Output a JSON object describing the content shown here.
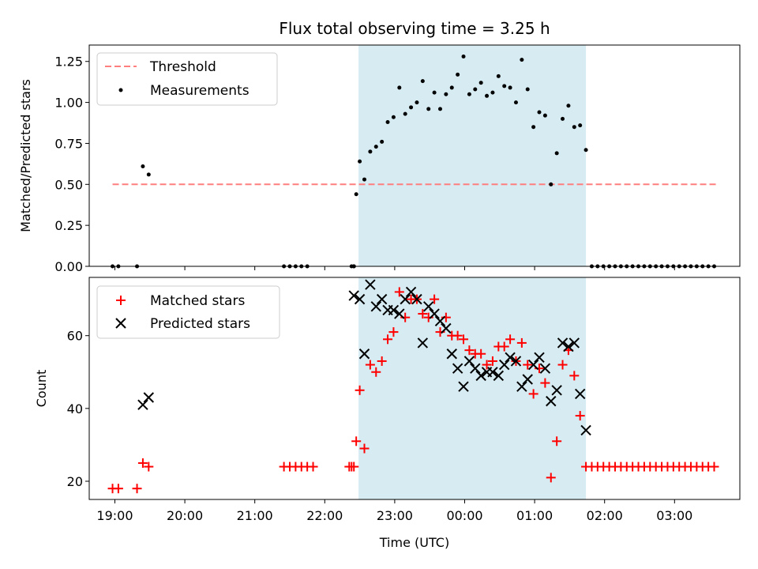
{
  "chart_data": {
    "type": "scatter",
    "title": "Flux total observing time = 3.25 h",
    "xlabel": "Time (UTC)",
    "x_ticks": [
      "19:00",
      "20:00",
      "21:00",
      "22:00",
      "23:00",
      "00:00",
      "01:00",
      "02:00",
      "03:00"
    ],
    "x_range": [
      "18:38",
      "03:56"
    ],
    "shaded_interval": [
      "22:29",
      "01:44"
    ],
    "colors": {
      "shade": "#add8e6",
      "threshold": "#ff7f7f",
      "matched": "#ff0000",
      "predicted": "#000000",
      "measurement": "#000000"
    },
    "top": {
      "ylabel": "Matched/Predicted stars",
      "ylim": [
        0,
        1.35
      ],
      "y_ticks": [
        "0.00",
        "0.25",
        "0.50",
        "0.75",
        "1.00",
        "1.25"
      ],
      "threshold": {
        "name": "Threshold",
        "y": 0.5,
        "x_start": "18:58",
        "x_end": "03:36"
      },
      "series": [
        {
          "name": "Measurements",
          "points": [
            [
              "18:58",
              0.0
            ],
            [
              "19:03",
              0.0
            ],
            [
              "19:19",
              0.0
            ],
            [
              "19:24",
              0.61
            ],
            [
              "19:29",
              0.56
            ],
            [
              "21:25",
              0.0
            ],
            [
              "21:30",
              0.0
            ],
            [
              "21:35",
              0.0
            ],
            [
              "21:40",
              0.0
            ],
            [
              "21:45",
              0.0
            ],
            [
              "22:23",
              0.0
            ],
            [
              "22:25",
              0.0
            ],
            [
              "22:25",
              0.0
            ],
            [
              "22:27",
              0.44
            ],
            [
              "22:30",
              0.64
            ],
            [
              "22:34",
              0.53
            ],
            [
              "22:39",
              0.7
            ],
            [
              "22:44",
              0.73
            ],
            [
              "22:49",
              0.76
            ],
            [
              "22:54",
              0.88
            ],
            [
              "22:59",
              0.91
            ],
            [
              "23:04",
              1.09
            ],
            [
              "23:09",
              0.93
            ],
            [
              "23:14",
              0.97
            ],
            [
              "23:19",
              1.0
            ],
            [
              "23:24",
              1.13
            ],
            [
              "23:29",
              0.96
            ],
            [
              "23:34",
              1.06
            ],
            [
              "23:39",
              0.96
            ],
            [
              "23:44",
              1.05
            ],
            [
              "23:49",
              1.09
            ],
            [
              "23:54",
              1.17
            ],
            [
              "23:59",
              1.28
            ],
            [
              "00:04",
              1.05
            ],
            [
              "00:09",
              1.08
            ],
            [
              "00:14",
              1.12
            ],
            [
              "00:19",
              1.04
            ],
            [
              "00:24",
              1.06
            ],
            [
              "00:29",
              1.16
            ],
            [
              "00:34",
              1.1
            ],
            [
              "00:39",
              1.09
            ],
            [
              "00:44",
              1.0
            ],
            [
              "00:49",
              1.26
            ],
            [
              "00:54",
              1.08
            ],
            [
              "00:59",
              0.85
            ],
            [
              "01:04",
              0.94
            ],
            [
              "01:09",
              0.92
            ],
            [
              "01:14",
              0.5
            ],
            [
              "01:19",
              0.69
            ],
            [
              "01:24",
              0.9
            ],
            [
              "01:29",
              0.98
            ],
            [
              "01:34",
              0.85
            ],
            [
              "01:39",
              0.86
            ],
            [
              "01:44",
              0.71
            ],
            [
              "01:49",
              0.0
            ],
            [
              "01:54",
              0.0
            ],
            [
              "01:59",
              0.0
            ],
            [
              "02:04",
              0.0
            ],
            [
              "02:09",
              0.0
            ],
            [
              "02:14",
              0.0
            ],
            [
              "02:19",
              0.0
            ],
            [
              "02:24",
              0.0
            ],
            [
              "02:29",
              0.0
            ],
            [
              "02:34",
              0.0
            ],
            [
              "02:39",
              0.0
            ],
            [
              "02:44",
              0.0
            ],
            [
              "02:49",
              0.0
            ],
            [
              "02:54",
              0.0
            ],
            [
              "02:59",
              0.0
            ],
            [
              "03:04",
              0.0
            ],
            [
              "03:09",
              0.0
            ],
            [
              "03:14",
              0.0
            ],
            [
              "03:19",
              0.0
            ],
            [
              "03:24",
              0.0
            ],
            [
              "03:29",
              0.0
            ],
            [
              "03:34",
              0.0
            ]
          ]
        }
      ],
      "legend_position": "upper-left"
    },
    "bottom": {
      "ylabel": "Count",
      "ylim": [
        15,
        76
      ],
      "y_ticks": [
        "20",
        "40",
        "60"
      ],
      "series": [
        {
          "name": "Matched stars",
          "marker": "plus",
          "points": [
            [
              "18:58",
              18
            ],
            [
              "19:03",
              18
            ],
            [
              "19:19",
              18
            ],
            [
              "19:24",
              25
            ],
            [
              "19:29",
              24
            ],
            [
              "21:25",
              24
            ],
            [
              "21:30",
              24
            ],
            [
              "21:35",
              24
            ],
            [
              "21:40",
              24
            ],
            [
              "21:45",
              24
            ],
            [
              "21:50",
              24
            ],
            [
              "22:21",
              24
            ],
            [
              "22:23",
              24
            ],
            [
              "22:25",
              24
            ],
            [
              "22:27",
              31
            ],
            [
              "22:30",
              45
            ],
            [
              "22:34",
              29
            ],
            [
              "22:39",
              52
            ],
            [
              "22:44",
              50
            ],
            [
              "22:49",
              53
            ],
            [
              "22:54",
              59
            ],
            [
              "22:59",
              61
            ],
            [
              "23:04",
              72
            ],
            [
              "23:09",
              65
            ],
            [
              "23:14",
              70
            ],
            [
              "23:19",
              70
            ],
            [
              "23:24",
              66
            ],
            [
              "23:29",
              65
            ],
            [
              "23:34",
              70
            ],
            [
              "23:39",
              61
            ],
            [
              "23:44",
              65
            ],
            [
              "23:49",
              60
            ],
            [
              "23:54",
              60
            ],
            [
              "23:59",
              59
            ],
            [
              "00:04",
              56
            ],
            [
              "00:09",
              55
            ],
            [
              "00:14",
              55
            ],
            [
              "00:19",
              52
            ],
            [
              "00:24",
              53
            ],
            [
              "00:29",
              57
            ],
            [
              "00:34",
              57
            ],
            [
              "00:39",
              59
            ],
            [
              "00:44",
              53
            ],
            [
              "00:49",
              58
            ],
            [
              "00:54",
              52
            ],
            [
              "00:59",
              44
            ],
            [
              "01:04",
              51
            ],
            [
              "01:09",
              47
            ],
            [
              "01:14",
              21
            ],
            [
              "01:19",
              31
            ],
            [
              "01:24",
              52
            ],
            [
              "01:29",
              56
            ],
            [
              "01:34",
              49
            ],
            [
              "01:39",
              38
            ],
            [
              "01:44",
              24
            ],
            [
              "01:49",
              24
            ],
            [
              "01:54",
              24
            ],
            [
              "01:59",
              24
            ],
            [
              "02:04",
              24
            ],
            [
              "02:09",
              24
            ],
            [
              "02:14",
              24
            ],
            [
              "02:19",
              24
            ],
            [
              "02:24",
              24
            ],
            [
              "02:29",
              24
            ],
            [
              "02:34",
              24
            ],
            [
              "02:39",
              24
            ],
            [
              "02:44",
              24
            ],
            [
              "02:49",
              24
            ],
            [
              "02:54",
              24
            ],
            [
              "02:59",
              24
            ],
            [
              "03:04",
              24
            ],
            [
              "03:09",
              24
            ],
            [
              "03:14",
              24
            ],
            [
              "03:19",
              24
            ],
            [
              "03:24",
              24
            ],
            [
              "03:29",
              24
            ],
            [
              "03:34",
              24
            ]
          ]
        },
        {
          "name": "Predicted stars",
          "marker": "x",
          "points": [
            [
              "19:24",
              41
            ],
            [
              "19:29",
              43
            ],
            [
              "22:25",
              71
            ],
            [
              "22:30",
              70
            ],
            [
              "22:34",
              55
            ],
            [
              "22:39",
              74
            ],
            [
              "22:44",
              68
            ],
            [
              "22:49",
              70
            ],
            [
              "22:54",
              67
            ],
            [
              "22:59",
              67
            ],
            [
              "23:04",
              66
            ],
            [
              "23:09",
              70
            ],
            [
              "23:14",
              72
            ],
            [
              "23:19",
              70
            ],
            [
              "23:24",
              58
            ],
            [
              "23:29",
              68
            ],
            [
              "23:34",
              66
            ],
            [
              "23:39",
              64
            ],
            [
              "23:44",
              62
            ],
            [
              "23:49",
              55
            ],
            [
              "23:54",
              51
            ],
            [
              "23:59",
              46
            ],
            [
              "00:04",
              53
            ],
            [
              "00:09",
              51
            ],
            [
              "00:14",
              49
            ],
            [
              "00:19",
              50
            ],
            [
              "00:24",
              50
            ],
            [
              "00:29",
              49
            ],
            [
              "00:34",
              52
            ],
            [
              "00:39",
              54
            ],
            [
              "00:44",
              53
            ],
            [
              "00:49",
              46
            ],
            [
              "00:54",
              48
            ],
            [
              "00:59",
              52
            ],
            [
              "01:04",
              54
            ],
            [
              "01:09",
              51
            ],
            [
              "01:14",
              42
            ],
            [
              "01:19",
              45
            ],
            [
              "01:24",
              58
            ],
            [
              "01:29",
              57
            ],
            [
              "01:34",
              58
            ],
            [
              "01:39",
              44
            ],
            [
              "01:44",
              34
            ]
          ]
        }
      ],
      "legend_position": "upper-left"
    }
  }
}
